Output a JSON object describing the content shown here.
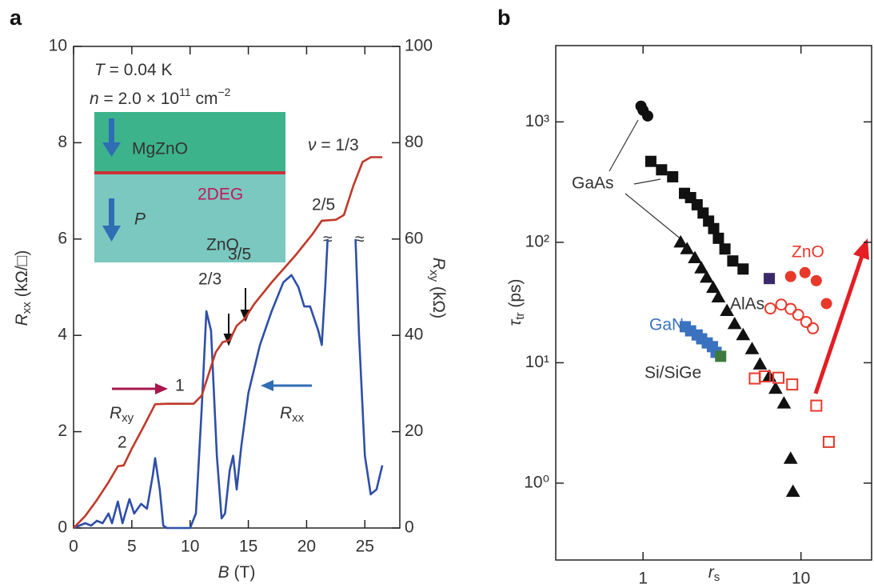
{
  "panel_labels": [
    "a",
    "b"
  ],
  "annotations_a": {
    "temperature": [
      "T",
      " = 0.04 K"
    ],
    "density": [
      "n",
      " = 2.0 × 10",
      "11",
      " cm",
      "−2"
    ],
    "barrier": "MgZnO",
    "channel": "2DEG",
    "polarization": "P",
    "substrate": "ZnO",
    "nu_third": [
      "ν",
      " = 1/3"
    ],
    "nu_two_fifths": "2/5",
    "nu_three_fifths": "3/5",
    "nu_two_thirds": "2/3",
    "nu_one": "1",
    "nu_two": "2",
    "rxy": [
      "R",
      "xy"
    ],
    "rxx": [
      "R",
      "xx"
    ],
    "break_marks": [
      "≈",
      "≈"
    ]
  },
  "annotations_b": {
    "gaas": "GaAs",
    "alas": "AlAs",
    "gan": "GaN",
    "sige": "Si/SiGe",
    "zno": "ZnO"
  },
  "chart_data": [
    {
      "type": "line",
      "xlabel": [
        "B",
        " (T)"
      ],
      "ylabel": [
        "R",
        "xx",
        " (kΩ/□)"
      ],
      "y2label": [
        "R",
        "xy",
        " (kΩ)"
      ],
      "xlim": [
        0,
        28
      ],
      "xticks": [
        0,
        5,
        10,
        15,
        20,
        25
      ],
      "ylim": [
        0,
        10
      ],
      "yticks": [
        0,
        2,
        4,
        6,
        8,
        10
      ],
      "y2lim": [
        0,
        100
      ],
      "y2ticks": [
        0,
        20,
        40,
        60,
        80,
        100
      ],
      "series": [
        {
          "color": "#2e4fa8",
          "x": [
            0,
            0.5,
            1,
            1.5,
            2,
            2.5,
            3,
            3.3,
            3.8,
            4.2,
            4.8,
            5.2,
            5.8,
            6.3,
            6.8,
            7,
            7.4,
            7.7,
            8,
            10,
            10.5,
            11,
            11.4,
            11.8,
            12.3,
            12.7,
            13,
            13.4,
            13.7,
            14,
            14.4,
            15,
            16,
            17,
            18,
            18.7,
            19.3,
            19.8,
            20.3,
            21,
            21.3,
            21.6,
            21.8,
            23,
            24.2,
            24.5,
            25,
            25.5,
            26,
            26.5
          ],
          "values": [
            0,
            0.05,
            0.1,
            0.05,
            0.15,
            0.1,
            0.3,
            0.1,
            0.55,
            0.1,
            0.6,
            0.3,
            0.5,
            0.4,
            1.1,
            1.45,
            0.8,
            0.05,
            0,
            0,
            0.3,
            2.5,
            4.5,
            4.1,
            1.5,
            0.2,
            0.3,
            1.2,
            1.5,
            0.8,
            1.7,
            2.8,
            3.8,
            4.5,
            5.1,
            5.25,
            5.0,
            4.6,
            4.6,
            4.1,
            3.8,
            5.0,
            6.0,
            null,
            6.0,
            4.0,
            1.5,
            0.7,
            0.8,
            1.3
          ]
        },
        {
          "color": "#c0392b",
          "axis": "y2",
          "x": [
            0,
            1,
            2,
            3,
            3.8,
            4.3,
            5,
            6,
            7,
            8,
            10.3,
            11,
            11.6,
            12.2,
            12.8,
            13.4,
            14,
            14.7,
            15.5,
            17,
            19,
            20.5,
            21.3,
            22.5,
            23.2,
            24,
            24.8,
            25.5,
            26.5
          ],
          "values": [
            0,
            2.5,
            5.8,
            9.5,
            12.8,
            13,
            16.5,
            21,
            25.7,
            25.8,
            25.8,
            27.5,
            32,
            36.5,
            38.6,
            39,
            42,
            43.5,
            46.5,
            51,
            56.5,
            61,
            63.8,
            64,
            65,
            71,
            76,
            77,
            77
          ]
        }
      ]
    },
    {
      "type": "scatter",
      "xlabel": [
        "r",
        "s"
      ],
      "ylabel": [
        "τ",
        "tr",
        " (ps)"
      ],
      "xlog": true,
      "ylog": true,
      "xlim": [
        0.28,
        28
      ],
      "xticks": [
        1,
        10
      ],
      "ylim": [
        0.23,
        4300
      ],
      "yticks": [
        {
          "value": 1,
          "label": "10⁰"
        },
        {
          "value": 10,
          "label": "10¹"
        },
        {
          "value": 100,
          "label": "10²"
        },
        {
          "value": 1000,
          "label": "10³"
        }
      ],
      "series": [
        {
          "color": "#111111",
          "marker": "circle",
          "filled": true,
          "x": [
            0.97,
            1.0,
            1.07
          ],
          "values": [
            1350,
            1250,
            1120
          ]
        },
        {
          "color": "#111111",
          "marker": "square",
          "filled": true,
          "x": [
            1.12,
            1.31,
            1.54,
            1.83,
            2.0,
            2.2,
            2.4,
            2.6,
            2.8,
            3.0,
            3.3,
            3.7,
            4.3
          ],
          "values": [
            470,
            400,
            350,
            255,
            235,
            205,
            175,
            150,
            130,
            108,
            88,
            70,
            60
          ]
        },
        {
          "color": "#111111",
          "marker": "triangle",
          "filled": true,
          "x": [
            1.73,
            1.9,
            2.13,
            2.34,
            2.53,
            2.78,
            3.0,
            3.4,
            3.8,
            4.3,
            4.9,
            5.5,
            6.3,
            6.9,
            7.8,
            8.6,
            8.9
          ],
          "values": [
            100,
            88,
            74,
            61,
            51,
            42,
            35,
            27,
            21,
            17,
            13,
            9.7,
            7.7,
            6.1,
            4.6,
            1.6,
            0.85
          ]
        },
        {
          "color": "#3b2a6b",
          "marker": "square",
          "filled": true,
          "x": [
            6.3
          ],
          "values": [
            50
          ]
        },
        {
          "color": "#3a72c0",
          "marker": "square",
          "filled": true,
          "x": [
            1.85,
            2.0,
            2.2,
            2.35,
            2.55,
            2.75,
            2.9
          ],
          "values": [
            19.9,
            18.4,
            17.0,
            15.8,
            14.6,
            13.6,
            12.2
          ]
        },
        {
          "color": "#3d7a3d",
          "marker": "square",
          "filled": true,
          "x": [
            3.1
          ],
          "values": [
            11.3
          ]
        },
        {
          "color": "#e8392b",
          "marker": "circle",
          "filled": true,
          "x": [
            8.6,
            10.6,
            12.5,
            14.5
          ],
          "values": [
            52,
            56,
            48,
            31
          ]
        },
        {
          "color": "#e8392b",
          "marker": "circle",
          "filled": false,
          "x": [
            6.4,
            7.5,
            8.6,
            9.6,
            10.8,
            11.9
          ],
          "values": [
            28.2,
            30.4,
            28,
            25,
            21.8,
            19.3
          ]
        },
        {
          "color": "#e8392b",
          "marker": "square",
          "filled": false,
          "x": [
            5.1,
            5.9,
            7.2,
            8.8,
            12.5,
            15
          ],
          "values": [
            7.4,
            7.7,
            7.5,
            6.6,
            4.4,
            2.2
          ]
        }
      ]
    }
  ]
}
